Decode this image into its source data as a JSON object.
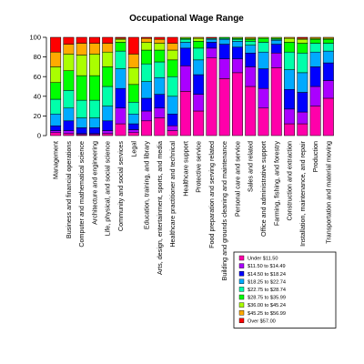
{
  "chart_data": {
    "type": "bar",
    "stacked": true,
    "title": "Occupational Wage Range",
    "xlabel": "",
    "ylabel": "",
    "ylim": [
      0,
      100
    ],
    "yticks": [
      "0",
      "20",
      "40",
      "60",
      "80",
      "100"
    ],
    "grid": false,
    "legend_position": "bottom-right",
    "categories": [
      "Management",
      "Business and financial operations",
      "Computer and mathematical science",
      "Architecture and engineering",
      "Life, physical, and social science",
      "Community and social services",
      "Legal",
      "Education, training, and library",
      "Arts, design, entertainment, sports, and media",
      "Healthcare practitioner and technical",
      "Healthcare support",
      "Protective service",
      "Food preparation and serving related",
      "Building and grounds cleaning and maintenance",
      "Personal care and service",
      "Sales and related",
      "Office and administrative support",
      "Farming, fishing, and forestry",
      "Construction and extraction",
      "Installation, maintenance, and repair",
      "Production",
      "Transportation and material moving"
    ],
    "series": [
      {
        "name": "Under $11.50",
        "color": "#ff00aa",
        "values": [
          3,
          2,
          1,
          1,
          2,
          12,
          3,
          15,
          18,
          5,
          45,
          25,
          79,
          58,
          64,
          50,
          28,
          69,
          12,
          12,
          30,
          38
        ]
      },
      {
        "name": "$11.50 to $14.49",
        "color": "#aa00ff",
        "values": [
          2,
          3,
          1,
          1,
          3,
          16,
          3,
          10,
          10,
          5,
          26,
          17,
          10,
          20,
          14,
          20,
          20,
          15,
          15,
          12,
          20,
          18
        ]
      },
      {
        "name": "$14.50 to $18.24",
        "color": "#0000ff",
        "values": [
          5,
          10,
          6,
          6,
          10,
          20,
          6,
          13,
          14,
          12,
          18,
          20,
          6,
          15,
          12,
          14,
          20,
          9,
          20,
          20,
          20,
          18
        ]
      },
      {
        "name": "$18.25 to $22.74",
        "color": "#00aaff",
        "values": [
          12,
          13,
          10,
          10,
          15,
          20,
          10,
          17,
          17,
          18,
          6,
          15,
          3,
          5,
          6,
          8,
          17,
          4,
          20,
          20,
          15,
          12
        ]
      },
      {
        "name": "$22.75 to $28.74",
        "color": "#00ffaa",
        "values": [
          15,
          18,
          18,
          18,
          20,
          18,
          12,
          18,
          16,
          20,
          3,
          12,
          1,
          1,
          2,
          4,
          10,
          1,
          18,
          20,
          9,
          8
        ]
      },
      {
        "name": "$28.75 to $35.99",
        "color": "#00ff00",
        "values": [
          17,
          20,
          25,
          25,
          20,
          9,
          18,
          14,
          12,
          17,
          1,
          7,
          0,
          1,
          1,
          2,
          4,
          1,
          10,
          10,
          4,
          4
        ]
      },
      {
        "name": "$36.00 to $45.24",
        "color": "#aaff00",
        "values": [
          16,
          17,
          21,
          22,
          15,
          3,
          17,
          8,
          7,
          10,
          1,
          3,
          0,
          0,
          1,
          1,
          1,
          1,
          4,
          4,
          1,
          1
        ]
      },
      {
        "name": "$45.25 to $56.99",
        "color": "#ffaa00",
        "values": [
          15,
          10,
          12,
          11,
          9,
          1,
          14,
          4,
          4,
          7,
          0,
          1,
          0,
          0,
          0,
          1,
          0,
          0,
          1,
          1,
          1,
          1
        ]
      },
      {
        "name": "Over $57.00",
        "color": "#ff0000",
        "values": [
          15,
          7,
          6,
          6,
          6,
          1,
          17,
          1,
          2,
          6,
          0,
          0,
          1,
          0,
          0,
          0,
          0,
          0,
          0,
          1,
          0,
          0
        ]
      }
    ]
  }
}
